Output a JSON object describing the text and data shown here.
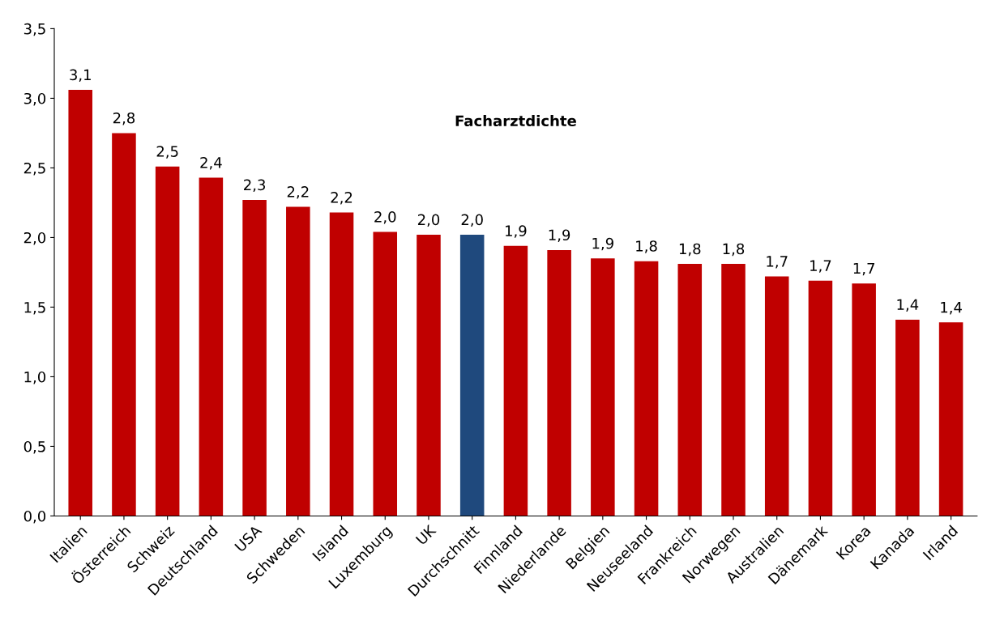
{
  "chart_data": {
    "type": "bar",
    "title": "Facharztdichte",
    "categories": [
      "Italien",
      "Österreich",
      "Schweiz",
      "Deutschland",
      "USA",
      "Schweden",
      "Island",
      "Luxemburg",
      "UK",
      "Durchschnitt",
      "Finnland",
      "Niederlande",
      "Belgien",
      "Neuseeland",
      "Frankreich",
      "Norwegen",
      "Australien",
      "Dänemark",
      "Korea",
      "Kanada",
      "Irland"
    ],
    "values": [
      3.06,
      2.75,
      2.51,
      2.43,
      2.27,
      2.22,
      2.18,
      2.04,
      2.02,
      2.02,
      1.94,
      1.91,
      1.85,
      1.83,
      1.81,
      1.81,
      1.72,
      1.69,
      1.67,
      1.41,
      1.39
    ],
    "value_labels": [
      "3,1",
      "2,8",
      "2,5",
      "2,4",
      "2,3",
      "2,2",
      "2,2",
      "2,0",
      "2,0",
      "2,0",
      "1,9",
      "1,9",
      "1,9",
      "1,8",
      "1,8",
      "1,8",
      "1,7",
      "1,7",
      "1,7",
      "1,4",
      "1,4"
    ],
    "colors": [
      "#c00000",
      "#c00000",
      "#c00000",
      "#c00000",
      "#c00000",
      "#c00000",
      "#c00000",
      "#c00000",
      "#c00000",
      "#1f497d",
      "#c00000",
      "#c00000",
      "#c00000",
      "#c00000",
      "#c00000",
      "#c00000",
      "#c00000",
      "#c00000",
      "#c00000",
      "#c00000",
      "#c00000"
    ],
    "ylim": [
      0,
      3.5
    ],
    "yticks": [
      {
        "value": 0,
        "label": "0,0"
      },
      {
        "value": 0.5,
        "label": "0,5"
      },
      {
        "value": 1,
        "label": "1,0"
      },
      {
        "value": 1.5,
        "label": "1,5"
      },
      {
        "value": 2,
        "label": "2,0"
      },
      {
        "value": 2.5,
        "label": "2,5"
      },
      {
        "value": 3,
        "label": "3,0"
      },
      {
        "value": 3.5,
        "label": "3,5"
      }
    ],
    "grid": false,
    "legend": false
  }
}
